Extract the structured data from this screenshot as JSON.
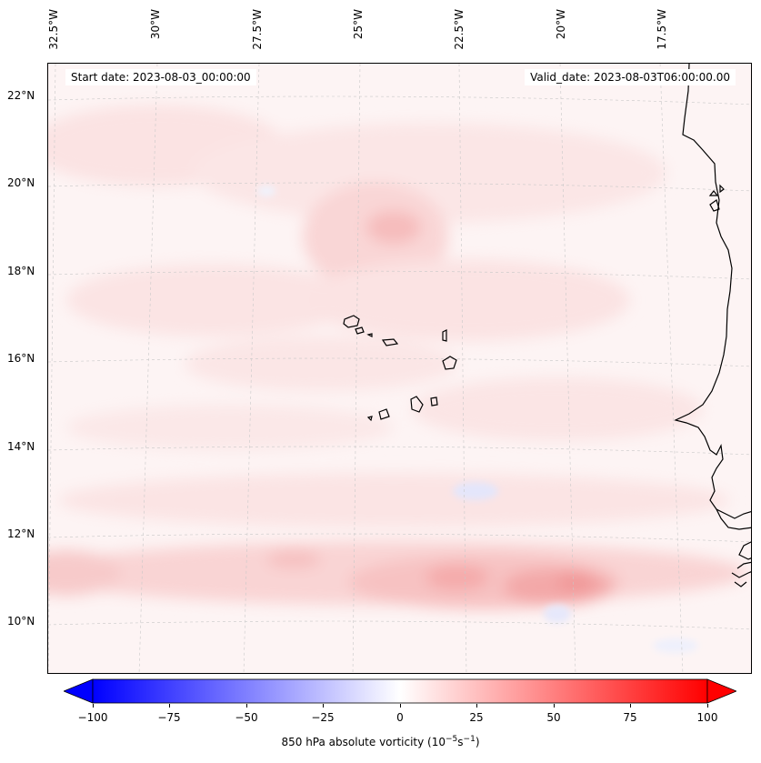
{
  "map": {
    "lon_labels": [
      "32.5°W",
      "30°W",
      "27.5°W",
      "25°W",
      "22.5°W",
      "20°W",
      "17.5°W"
    ],
    "lat_labels": [
      "22°N",
      "20°N",
      "18°N",
      "16°N",
      "14°N",
      "12°N",
      "10°N"
    ],
    "start_date": "Start date: 2023-08-03_00:00:00",
    "valid_date": "Valid_date: 2023-08-03T06:00:00.00",
    "field": "850 hPa absolute vorticity",
    "extent": {
      "lon_min": -32.7,
      "lon_max": -15.6,
      "lat_min": 8.8,
      "lat_max": 22.8
    },
    "colormap": "bwr",
    "background": "#fdf6f6"
  },
  "colorbar": {
    "ticks": [
      "−100",
      "−75",
      "−50",
      "−25",
      "0",
      "25",
      "50",
      "75",
      "100"
    ],
    "min": -100,
    "max": 100,
    "label": "850 hPa absolute vorticity (10",
    "label_exp": "−5",
    "label_mid": "s",
    "label_exp2": "−1",
    "label_end": ")",
    "colors": {
      "low": "#0000ff",
      "mid": "#ffffff",
      "high": "#ff0000"
    }
  }
}
